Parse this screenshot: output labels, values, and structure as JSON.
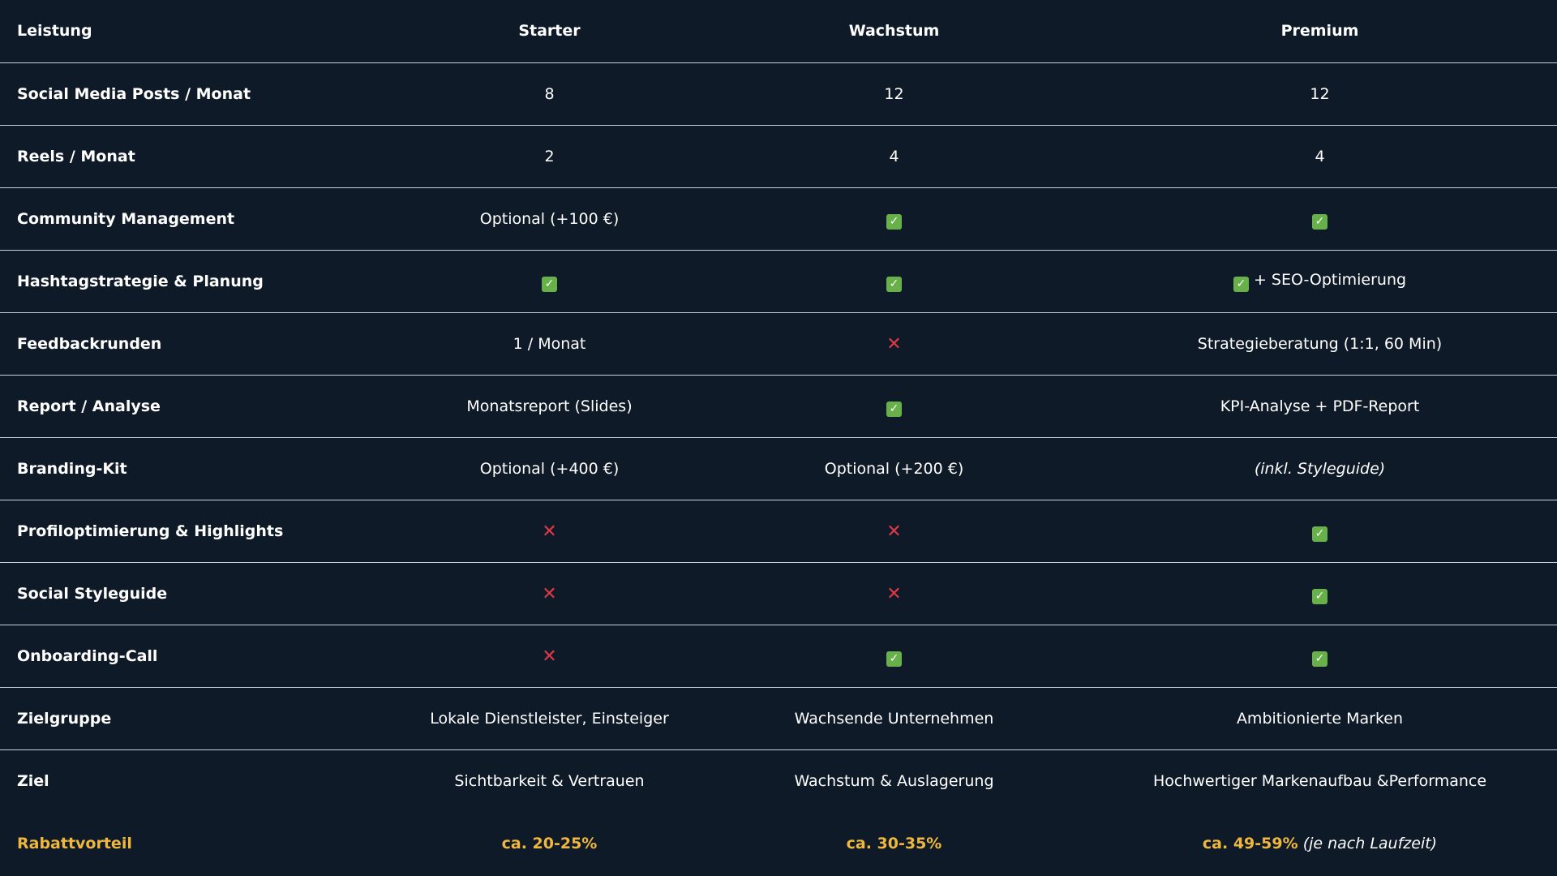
{
  "header": {
    "leistung": "Leistung",
    "starter": "Starter",
    "wachstum": "Wachstum",
    "premium": "Premium"
  },
  "rows": [
    {
      "label": "Social Media Posts / Monat",
      "starter": {
        "type": "text",
        "text": "8"
      },
      "wachstum": {
        "type": "text",
        "text": "12"
      },
      "premium": {
        "type": "text",
        "text": "12"
      }
    },
    {
      "label": "Reels / Monat",
      "starter": {
        "type": "text",
        "text": "2"
      },
      "wachstum": {
        "type": "text",
        "text": "4"
      },
      "premium": {
        "type": "text",
        "text": "4"
      }
    },
    {
      "label": "Community Management",
      "starter": {
        "type": "text",
        "text": "Optional (+100 €)"
      },
      "wachstum": {
        "type": "check"
      },
      "premium": {
        "type": "check"
      }
    },
    {
      "label": "Hashtagstrategie & Planung",
      "starter": {
        "type": "check"
      },
      "wachstum": {
        "type": "check"
      },
      "premium": {
        "type": "check",
        "text": " + SEO-Optimierung"
      }
    },
    {
      "label": "Feedbackrunden",
      "starter": {
        "type": "text",
        "text": "1 / Monat"
      },
      "wachstum": {
        "type": "cross"
      },
      "premium": {
        "type": "text",
        "text": "Strategieberatung (1:1, 60 Min)"
      }
    },
    {
      "label": "Report / Analyse",
      "starter": {
        "type": "text",
        "text": "Monatsreport (Slides)"
      },
      "wachstum": {
        "type": "check"
      },
      "premium": {
        "type": "text",
        "text": "KPI-Analyse + PDF-Report"
      }
    },
    {
      "label": "Branding-Kit",
      "starter": {
        "type": "text",
        "text": "Optional (+400 €)"
      },
      "wachstum": {
        "type": "text",
        "text": "Optional (+200 €)"
      },
      "premium": {
        "type": "italic",
        "text": "(inkl. Styleguide)"
      }
    },
    {
      "label": "Profiloptimierung & Highlights",
      "starter": {
        "type": "cross"
      },
      "wachstum": {
        "type": "cross"
      },
      "premium": {
        "type": "check"
      }
    },
    {
      "label": "Social Styleguide",
      "starter": {
        "type": "cross"
      },
      "wachstum": {
        "type": "cross"
      },
      "premium": {
        "type": "check"
      }
    },
    {
      "label": "Onboarding-Call",
      "starter": {
        "type": "cross"
      },
      "wachstum": {
        "type": "check"
      },
      "premium": {
        "type": "check"
      }
    },
    {
      "label": "Zielgruppe",
      "starter": {
        "type": "text",
        "text": "Lokale Dienstleister, Einsteiger"
      },
      "wachstum": {
        "type": "text",
        "text": "Wachsende Unternehmen"
      },
      "premium": {
        "type": "text",
        "text": "Ambitionierte Marken"
      }
    },
    {
      "label": "Ziel",
      "starter": {
        "type": "text",
        "text": "Sichtbarkeit & Vertrauen"
      },
      "wachstum": {
        "type": "text",
        "text": "Wachstum & Auslagerung"
      },
      "premium": {
        "type": "text",
        "text": "Hochwertiger Markenaufbau &Performance"
      }
    }
  ],
  "discount": {
    "label": "Rabattvorteil",
    "starter": "ca. 20-25%",
    "wachstum": "ca. 30-35%",
    "premium": "ca. 49-59%",
    "premium_note": "(je nach Laufzeit)"
  },
  "icons": {
    "check": "check-mark-icon",
    "cross": "cross-mark-icon"
  },
  "colors": {
    "background": "#0f1a28",
    "divider": "#c9cfd6",
    "check": "#67b04a",
    "cross": "#e23846",
    "highlight": "#efb73e"
  }
}
